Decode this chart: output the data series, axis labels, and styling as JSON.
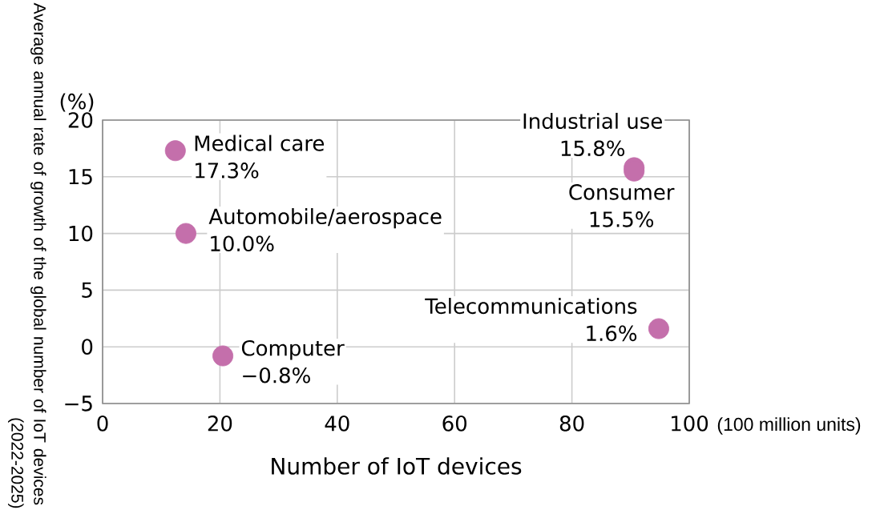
{
  "chart_data": {
    "type": "scatter",
    "xlabel": "Number of IoT devices",
    "ylabel": "Average annual rate of growth of the global number of IoT devices (2022-2025)",
    "annotations": [
      "(%)",
      "(100 million units)"
    ],
    "series": [
      {
        "name": "Medical care",
        "color": "#c46fab",
        "x": [
          12.4
        ],
        "values": [
          17.3
        ],
        "value_labels": [
          "17.3%"
        ]
      },
      {
        "name": "Automobile/aerospace",
        "color": "#c46fab",
        "x": [
          14.2
        ],
        "values": [
          10.0
        ],
        "value_labels": [
          "10.0%"
        ]
      },
      {
        "name": "Computer",
        "color": "#c46fab",
        "x": [
          20.5
        ],
        "values": [
          -0.8
        ],
        "value_labels": [
          "−0.8%"
        ]
      },
      {
        "name": "Industrial use",
        "color": "#c46fab",
        "x": [
          90.6
        ],
        "values": [
          15.8
        ],
        "value_labels": [
          "15.8%"
        ]
      },
      {
        "name": "Consumer",
        "color": "#c46fab",
        "x": [
          90.6
        ],
        "values": [
          15.5
        ],
        "value_labels": [
          "15.5%"
        ]
      },
      {
        "name": "Telecommunications",
        "color": "#c46fab",
        "x": [
          94.8
        ],
        "values": [
          1.6
        ],
        "value_labels": [
          "1.6%"
        ]
      }
    ],
    "xlim": [
      0,
      100
    ],
    "xticks": [
      0,
      20,
      40,
      60,
      80,
      100
    ],
    "ylim": [
      -5,
      20
    ],
    "yticks": [
      {
        "value": -5,
        "label": "−5"
      },
      0,
      5,
      10,
      15,
      20
    ],
    "grid": true,
    "marker": "circle"
  }
}
